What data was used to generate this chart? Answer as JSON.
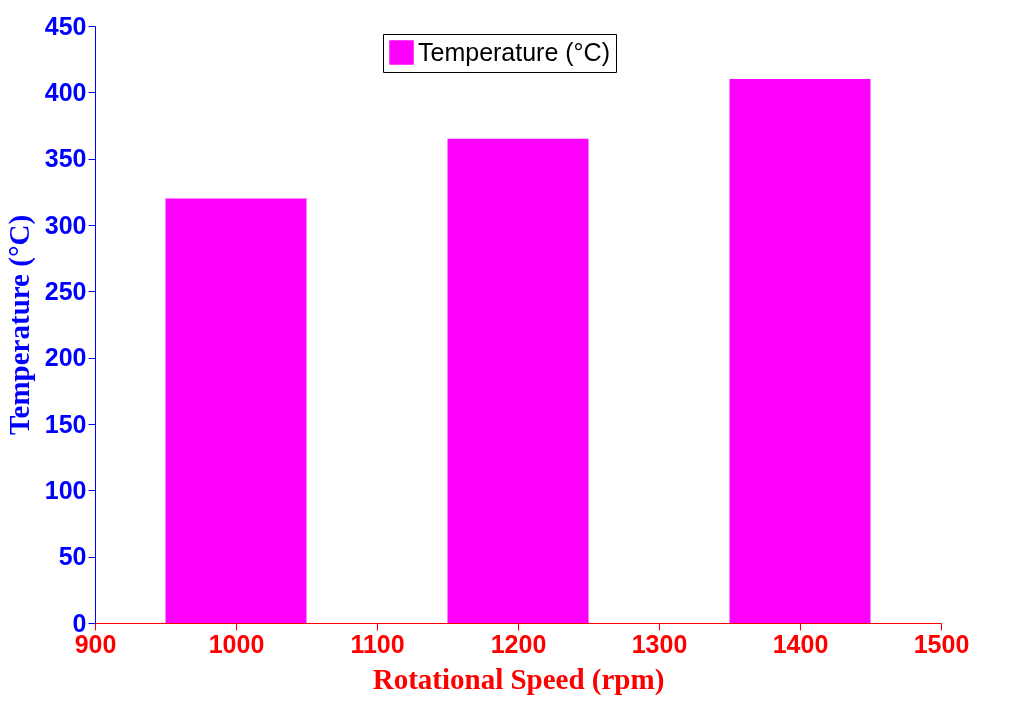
{
  "chart_data": {
    "type": "bar",
    "xlabel": "Rotational Speed (rpm)",
    "ylabel": "Temperature (°C)",
    "x": [
      1000,
      1200,
      1400
    ],
    "series": [
      {
        "name": "Temperature (°C)",
        "color": "#ff00ff",
        "values": [
          320,
          365,
          410
        ]
      }
    ],
    "xlim": [
      900,
      1500
    ],
    "xticks": [
      900,
      1000,
      1100,
      1200,
      1300,
      1400,
      1500
    ],
    "ylim": [
      0,
      450
    ],
    "yticks": [
      0,
      50,
      100,
      150,
      200,
      250,
      300,
      350,
      400,
      450
    ],
    "legend": "top",
    "grid": false
  }
}
